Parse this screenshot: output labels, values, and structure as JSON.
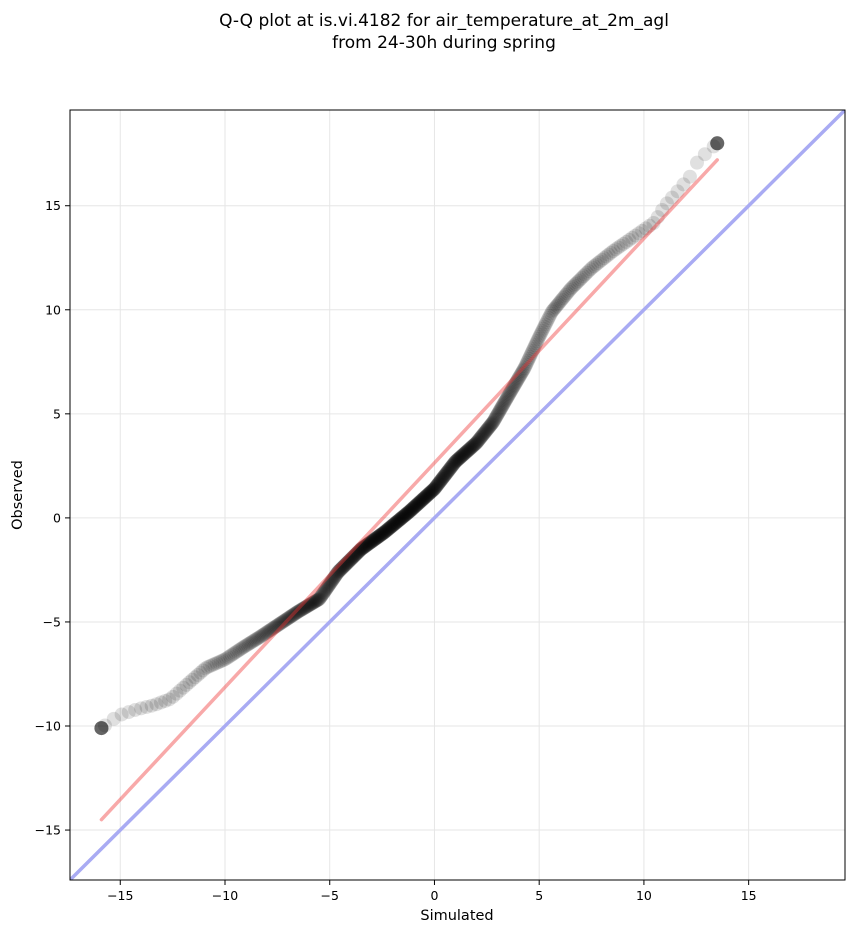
{
  "chart_data": {
    "type": "scatter",
    "title": "Q-Q plot at is.vi.4182 for air_temperature_at_2m_agl",
    "subtitle": "from 24-30h during spring",
    "xlabel": "Simulated",
    "ylabel": "Observed",
    "xlim": [
      -17.4,
      19.6
    ],
    "ylim": [
      -17.4,
      19.6
    ],
    "xticks": [
      -15,
      -10,
      -5,
      0,
      5,
      10,
      15
    ],
    "yticks": [
      -15,
      -10,
      -5,
      0,
      5,
      10,
      15
    ],
    "xtick_labels": [
      "−15",
      "−10",
      "−5",
      "0",
      "5",
      "10",
      "15"
    ],
    "ytick_labels": [
      "−15",
      "−10",
      "−5",
      "0",
      "5",
      "10",
      "15"
    ],
    "grid": true,
    "colors": {
      "points": "#000000",
      "fit_line": "#f4a6a6",
      "identity_line": "#a9abf3",
      "grid": "#e6e6e6"
    },
    "qq_curve": {
      "x": [
        -15.9,
        -15.5,
        -15.1,
        -14.2,
        -13.4,
        -12.6,
        -11.7,
        -10.9,
        -10.0,
        -9.1,
        -8.3,
        -7.4,
        -6.5,
        -5.5,
        -4.6,
        -3.5,
        -2.4,
        -1.2,
        0.0,
        1.0,
        2.0,
        2.8,
        3.6,
        4.3,
        5.0,
        5.6,
        6.5,
        7.5,
        8.5,
        9.5,
        10.5,
        11.0,
        11.7,
        12.2,
        12.6,
        13.5
      ],
      "y": [
        -10.1,
        -9.8,
        -9.5,
        -9.2,
        -9.0,
        -8.7,
        -7.9,
        -7.2,
        -6.8,
        -6.2,
        -5.7,
        -5.1,
        -4.5,
        -3.9,
        -2.6,
        -1.5,
        -0.7,
        0.3,
        1.4,
        2.7,
        3.6,
        4.6,
        6.0,
        7.2,
        8.7,
        9.9,
        11.0,
        12.0,
        12.8,
        13.5,
        14.2,
        15.0,
        15.8,
        16.4,
        17.2,
        18.0
      ],
      "marker_alpha": 0.12,
      "marker_count": 600
    },
    "fit_line": {
      "x": [
        -15.9,
        13.5
      ],
      "y": [
        -14.5,
        17.2
      ]
    },
    "identity_line": {
      "x": [
        -17.4,
        19.6
      ],
      "y": [
        -17.4,
        19.6
      ]
    }
  }
}
